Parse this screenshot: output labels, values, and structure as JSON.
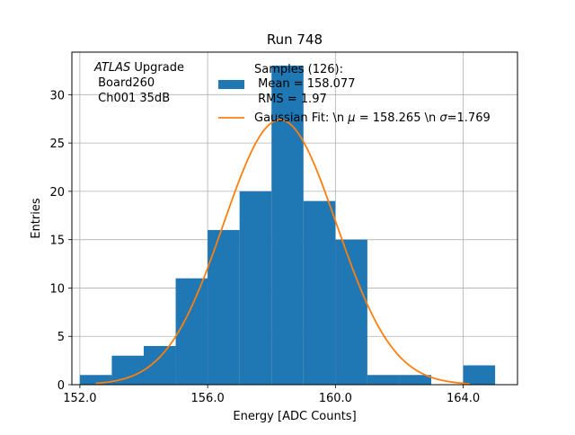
{
  "chart_data": {
    "type": "bar",
    "title": "Run 748",
    "xlabel": "Energy [ADC Counts]",
    "ylabel": "Entries",
    "xlim": [
      151.75,
      165.7
    ],
    "ylim": [
      0,
      34.4
    ],
    "grid": true,
    "xticks": [
      152.0,
      156.0,
      160.0,
      164.0
    ],
    "xtick_labels": [
      "152.0",
      "156.0",
      "160.0",
      "164.0"
    ],
    "yticks": [
      0,
      5,
      10,
      15,
      20,
      25,
      30
    ],
    "ytick_labels": [
      "0",
      "5",
      "10",
      "15",
      "20",
      "25",
      "30"
    ],
    "histogram": {
      "name": "Samples (126):",
      "color": "#1f77b4",
      "bin_edges": [
        152.0,
        153.0,
        154.0,
        155.0,
        156.0,
        157.0,
        158.0,
        159.0,
        160.0,
        161.0,
        162.0,
        163.0,
        164.0,
        165.0
      ],
      "values": [
        1,
        3,
        4,
        11,
        16,
        20,
        33,
        19,
        15,
        1,
        1,
        0,
        2
      ]
    },
    "fit": {
      "name": "Gaussian Fit: \\n $\\mu$ = 158.265 \\n $\\sigma$=1.769",
      "color": "#ff7f0e",
      "mu": 158.265,
      "sigma": 1.769,
      "amplitude": 27.4,
      "x_range": [
        152.5,
        164.2
      ]
    },
    "annotation": {
      "line1_italic": "ATLAS",
      "line1_rest": " Upgrade",
      "line2": " Board260",
      "line3": " Ch001 35dB"
    },
    "legend": {
      "position": "top-right",
      "hist_line1": "Samples (126):",
      "hist_line2": " Mean = 158.077",
      "hist_line3": " RMS = 1.97",
      "fit_prefix": "Gaussian Fit: \\n ",
      "fit_mu_symbol": "μ",
      "fit_mid": " = 158.265 \\n ",
      "fit_sigma_symbol": "σ",
      "fit_suffix": "=1.769"
    }
  }
}
